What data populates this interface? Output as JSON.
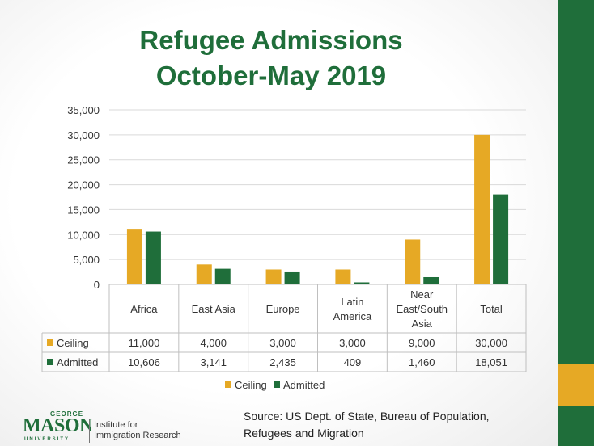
{
  "title_line1": "Refugee Admissions",
  "title_line2": "October-May 2019",
  "source_line1": "Source: US Dept. of State, Bureau of Population,",
  "source_line2": "Refugees and Migration",
  "logo": {
    "george": "GEORGE",
    "mason": "MASON",
    "university": "UNIVERSITY",
    "institute_line1": "Institute for",
    "institute_line2": "Immigration Research"
  },
  "colors": {
    "ceiling": "#e6a925",
    "admitted": "#1f6e3a",
    "title": "#1f6e3a"
  },
  "chart_data": {
    "type": "bar",
    "categories": [
      "Africa",
      "East Asia",
      "Europe",
      "Latin America",
      "Near East/South Asia",
      "Total"
    ],
    "category_label_lines": [
      [
        "Africa"
      ],
      [
        "East Asia"
      ],
      [
        "Europe"
      ],
      [
        "Latin",
        "America"
      ],
      [
        "Near",
        "East/South",
        "Asia"
      ],
      [
        "Total"
      ]
    ],
    "series": [
      {
        "name": "Ceiling",
        "values": [
          11000,
          4000,
          3000,
          3000,
          9000,
          30000
        ],
        "labels": [
          "11,000",
          "4,000",
          "3,000",
          "3,000",
          "9,000",
          "30,000"
        ],
        "color": "#e6a925"
      },
      {
        "name": "Admitted",
        "values": [
          10606,
          3141,
          2435,
          409,
          1460,
          18051
        ],
        "labels": [
          "10,606",
          "3,141",
          "2,435",
          "409",
          "1,460",
          "18,051"
        ],
        "color": "#1f6e3a"
      }
    ],
    "ylim": [
      0,
      35000
    ],
    "yticks": [
      0,
      5000,
      10000,
      15000,
      20000,
      25000,
      30000,
      35000
    ],
    "ytick_labels": [
      "0",
      "5,000",
      "10,000",
      "15,000",
      "20,000",
      "25,000",
      "30,000",
      "35,000"
    ],
    "grid": true,
    "legend_position": "bottom",
    "data_table": true
  }
}
